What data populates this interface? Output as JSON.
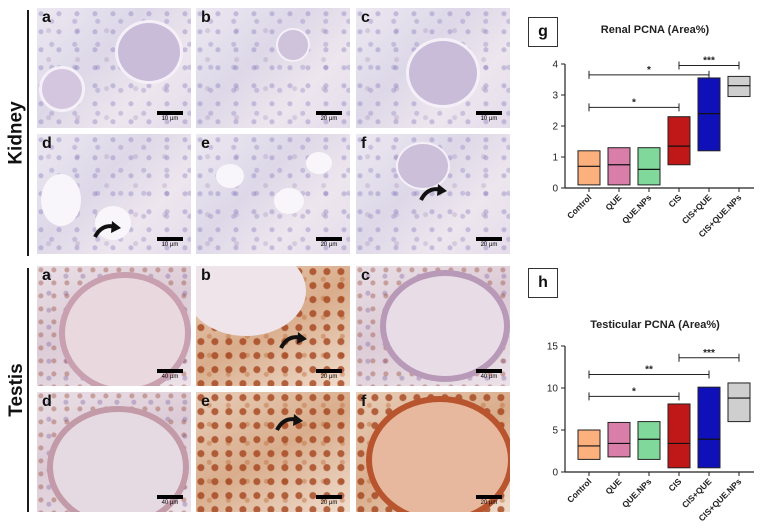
{
  "sections": {
    "kidney": "Kidney",
    "testis": "Testis"
  },
  "kidney_panels": [
    {
      "letter": "a",
      "scale": "10 µm"
    },
    {
      "letter": "b",
      "scale": "20 µm"
    },
    {
      "letter": "c",
      "scale": "10 µm"
    },
    {
      "letter": "d",
      "scale": "10 µm"
    },
    {
      "letter": "e",
      "scale": "20 µm"
    },
    {
      "letter": "f",
      "scale": "20 µm"
    }
  ],
  "testis_panels": [
    {
      "letter": "a",
      "scale": "40 µm"
    },
    {
      "letter": "b",
      "scale": "20 µm"
    },
    {
      "letter": "c",
      "scale": "40 µm"
    },
    {
      "letter": "d",
      "scale": "40 µm"
    },
    {
      "letter": "e",
      "scale": "20 µm"
    },
    {
      "letter": "f",
      "scale": "20 µm"
    }
  ],
  "colors": {
    "control": "#fbb07e",
    "que": "#d87ea8",
    "que_nps": "#80d99b",
    "cis": "#c01818",
    "cis_que": "#1010b8",
    "cis_que_nps": "#cfcfcf"
  },
  "chart_data": [
    {
      "type": "box",
      "panel_letter": "g",
      "title": "Renal PCNA (Area%)",
      "categories": [
        "Control",
        "QUE",
        "QUE.NPs",
        "CIS",
        "CIS+QUE",
        "CIS+QUE.NPs"
      ],
      "boxes": [
        {
          "min": 0.1,
          "median": 0.7,
          "max": 1.2
        },
        {
          "min": 0.1,
          "median": 0.75,
          "max": 1.3
        },
        {
          "min": 0.1,
          "median": 0.6,
          "max": 1.3
        },
        {
          "min": 0.75,
          "median": 1.35,
          "max": 2.3
        },
        {
          "min": 1.2,
          "median": 2.4,
          "max": 3.55
        },
        {
          "min": 2.95,
          "median": 3.3,
          "max": 3.6
        }
      ],
      "ylim": [
        0,
        4
      ],
      "yticks": [
        0,
        1,
        2,
        3,
        4
      ],
      "grid": false,
      "significance": [
        {
          "from": 0,
          "to": 3,
          "label": "*",
          "y": 2.6
        },
        {
          "from": 0,
          "to": 4,
          "label": "*",
          "y": 3.65
        },
        {
          "from": 3,
          "to": 5,
          "label": "***",
          "y": 3.95
        }
      ]
    },
    {
      "type": "box",
      "panel_letter": "h",
      "title": "Testicular PCNA (Area%)",
      "categories": [
        "Control",
        "QUE",
        "QUE.NPs",
        "CIS",
        "CIS+QUE",
        "CIS+QUE.NPs"
      ],
      "boxes": [
        {
          "min": 1.5,
          "median": 3.1,
          "max": 5.0
        },
        {
          "min": 1.8,
          "median": 3.4,
          "max": 5.9
        },
        {
          "min": 1.5,
          "median": 3.9,
          "max": 6.0
        },
        {
          "min": 0.5,
          "median": 3.4,
          "max": 8.1
        },
        {
          "min": 0.5,
          "median": 3.9,
          "max": 10.1
        },
        {
          "min": 6.0,
          "median": 8.8,
          "max": 10.6
        }
      ],
      "ylim": [
        0,
        15
      ],
      "yticks": [
        0,
        5,
        10,
        15
      ],
      "grid": false,
      "significance": [
        {
          "from": 0,
          "to": 3,
          "label": "*",
          "y": 9.0
        },
        {
          "from": 0,
          "to": 4,
          "label": "**",
          "y": 11.6
        },
        {
          "from": 3,
          "to": 5,
          "label": "***",
          "y": 13.6
        }
      ]
    }
  ]
}
